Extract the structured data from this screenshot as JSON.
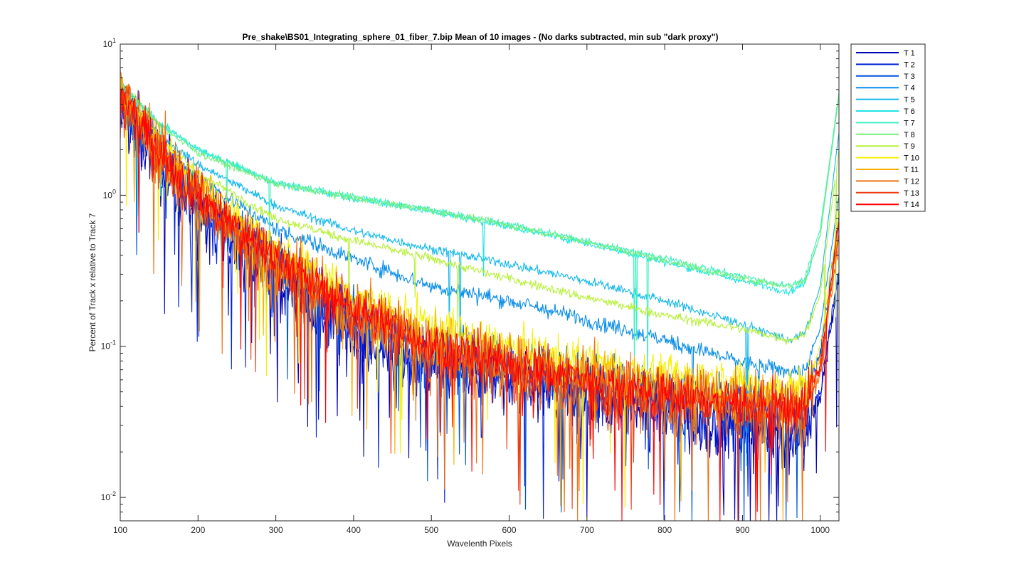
{
  "chart_data": {
    "type": "line",
    "title": "Pre_shake\\BS01_Integrating_sphere_01_fiber_7.bip  Mean of 10 images - (No darks subtracted, min sub \"dark proxy\")",
    "xlabel": "Wavelenth Pixels",
    "ylabel": "Percent of Track x relative to Track 7",
    "xlim": [
      100,
      1024
    ],
    "ylim": [
      0.007,
      10
    ],
    "yscale": "log",
    "x_ticks": [
      "100",
      "200",
      "300",
      "400",
      "500",
      "600",
      "700",
      "800",
      "900",
      "1000"
    ],
    "y_ticks": [
      {
        "value": 10,
        "base": "10",
        "exp": "1"
      },
      {
        "value": 1,
        "base": "10",
        "exp": "0"
      },
      {
        "value": 0.1,
        "base": "10",
        "exp": "-1"
      },
      {
        "value": 0.01,
        "base": "10",
        "exp": "-2"
      }
    ],
    "legend_position": "outside-right",
    "grid": false,
    "x_sampled": [
      100,
      150,
      200,
      300,
      400,
      500,
      600,
      700,
      800,
      900,
      960,
      980,
      1000,
      1024
    ],
    "series": [
      {
        "name": "T 1",
        "color": "#0000b3",
        "values": [
          4.0,
          1.6,
          0.8,
          0.28,
          0.12,
          0.078,
          0.06,
          0.047,
          0.036,
          0.029,
          0.026,
          0.027,
          0.045,
          0.3
        ],
        "noise": 0.55
      },
      {
        "name": "T 2",
        "color": "#0022d6",
        "values": [
          4.0,
          1.7,
          0.85,
          0.3,
          0.13,
          0.082,
          0.063,
          0.049,
          0.038,
          0.031,
          0.028,
          0.029,
          0.05,
          0.32
        ],
        "noise": 0.5
      },
      {
        "name": "T 3",
        "color": "#0055e0",
        "values": [
          4.0,
          1.8,
          0.95,
          0.35,
          0.16,
          0.1,
          0.078,
          0.063,
          0.05,
          0.042,
          0.04,
          0.045,
          0.09,
          0.7
        ],
        "noise": 0.38
      },
      {
        "name": "T 4",
        "color": "#0a8de8",
        "values": [
          4.5,
          2.2,
          1.3,
          0.6,
          0.38,
          0.25,
          0.2,
          0.15,
          0.11,
          0.078,
          0.068,
          0.07,
          0.13,
          1.0
        ],
        "noise": 0.12
      },
      {
        "name": "T 5",
        "color": "#14b8ea",
        "values": [
          5.0,
          2.5,
          1.6,
          0.85,
          0.58,
          0.44,
          0.35,
          0.27,
          0.2,
          0.14,
          0.11,
          0.12,
          0.25,
          2.6
        ],
        "noise": 0.07
      },
      {
        "name": "T 6",
        "color": "#1ee5e8",
        "values": [
          5.5,
          3.0,
          2.0,
          1.2,
          0.95,
          0.78,
          0.62,
          0.48,
          0.36,
          0.27,
          0.23,
          0.26,
          0.55,
          4.5
        ],
        "noise": 0.05
      },
      {
        "name": "T 7",
        "color": "#3cf0c0",
        "values": [
          5.5,
          3.0,
          2.0,
          1.22,
          0.98,
          0.8,
          0.64,
          0.5,
          0.38,
          0.29,
          0.25,
          0.28,
          0.6,
          4.8
        ],
        "noise": 0.05
      },
      {
        "name": "T 8",
        "color": "#77f07a",
        "values": [
          5.5,
          2.9,
          1.9,
          1.18,
          0.96,
          0.79,
          0.63,
          0.49,
          0.37,
          0.28,
          0.25,
          0.27,
          0.55,
          4.6
        ],
        "noise": 0.05
      },
      {
        "name": "T 9",
        "color": "#b8f03a",
        "values": [
          5.0,
          2.4,
          1.4,
          0.7,
          0.5,
          0.38,
          0.28,
          0.21,
          0.16,
          0.13,
          0.11,
          0.12,
          0.22,
          2.0
        ],
        "noise": 0.07
      },
      {
        "name": "T 10",
        "color": "#f5f000",
        "values": [
          5.0,
          2.2,
          1.2,
          0.45,
          0.22,
          0.14,
          0.1,
          0.08,
          0.066,
          0.057,
          0.052,
          0.054,
          0.1,
          0.8
        ],
        "noise": 0.3
      },
      {
        "name": "T 11",
        "color": "#ffb000",
        "values": [
          4.5,
          2.0,
          1.0,
          0.38,
          0.18,
          0.11,
          0.08,
          0.063,
          0.052,
          0.046,
          0.042,
          0.045,
          0.08,
          0.6
        ],
        "noise": 0.4
      },
      {
        "name": "T 12",
        "color": "#f07010",
        "values": [
          4.5,
          1.9,
          0.95,
          0.35,
          0.16,
          0.095,
          0.07,
          0.055,
          0.044,
          0.039,
          0.036,
          0.038,
          0.07,
          0.5
        ],
        "noise": 0.55
      },
      {
        "name": "T 13",
        "color": "#f03a10",
        "values": [
          4.2,
          1.9,
          0.95,
          0.36,
          0.17,
          0.1,
          0.073,
          0.057,
          0.046,
          0.04,
          0.037,
          0.04,
          0.07,
          0.6
        ],
        "noise": 0.42
      },
      {
        "name": "T 14",
        "color": "#ff0000",
        "values": [
          4.5,
          2.0,
          1.0,
          0.38,
          0.18,
          0.105,
          0.076,
          0.06,
          0.048,
          0.042,
          0.039,
          0.042,
          0.075,
          0.7
        ],
        "noise": 0.35
      }
    ]
  }
}
